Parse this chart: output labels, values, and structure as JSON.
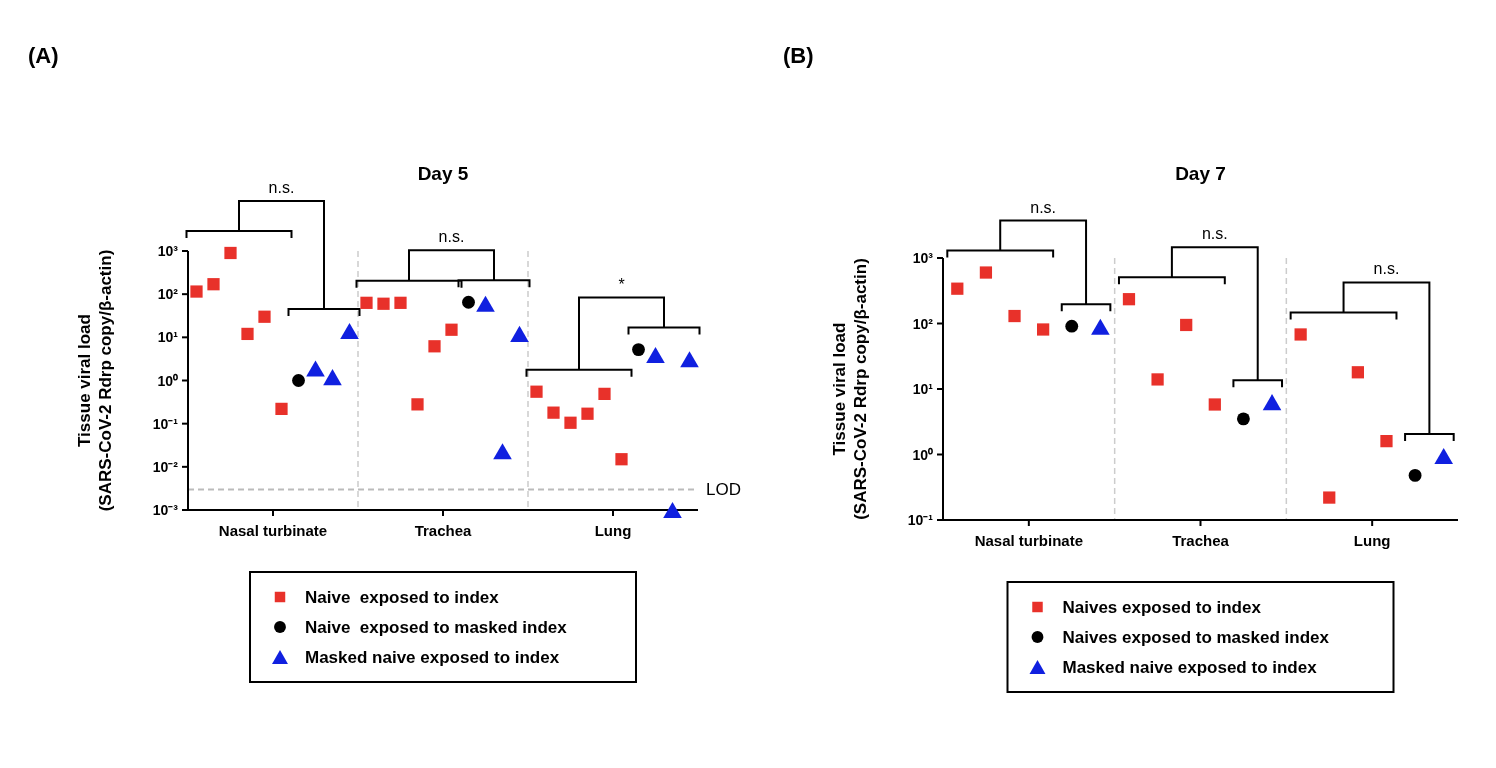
{
  "chart_data": [
    {
      "type": "scatter",
      "title": "Day 5",
      "ylabel": "Tissue viral load\n(SARS-CoV-2 Rdrp copy/β-actin)",
      "log": "y",
      "legend": "bottom",
      "categories": [
        "Nasal turbinate",
        "Trachea",
        "Lung"
      ],
      "ylim": [
        0.001,
        1000
      ],
      "yticks": [
        {
          "value": 0.001,
          "label": "10⁻³"
        },
        {
          "value": 0.01,
          "label": "10⁻²"
        },
        {
          "value": 0.1,
          "label": "10⁻¹"
        },
        {
          "value": 1,
          "label": "10⁰"
        },
        {
          "value": 10,
          "label": "10¹"
        },
        {
          "value": 100,
          "label": "10²"
        },
        {
          "value": 1000,
          "label": "10³"
        }
      ],
      "ref_lines": [
        {
          "axis": "y",
          "value": 0.003,
          "label": "LOD",
          "color": "#bbbbbb",
          "line_style": "dashed"
        }
      ],
      "annotations": [
        "(A)",
        "n.s.",
        "n.s.",
        "*"
      ],
      "series": [
        {
          "name": "Naive  exposed to index",
          "color": "#e8312a",
          "marker": "square",
          "x": [
            "Nasal turbinate",
            "Nasal turbinate",
            "Nasal turbinate",
            "Nasal turbinate",
            "Nasal turbinate",
            "Nasal turbinate",
            "Trachea",
            "Trachea",
            "Trachea",
            "Trachea",
            "Trachea",
            "Trachea",
            "Lung",
            "Lung",
            "Lung",
            "Lung",
            "Lung",
            "Lung"
          ],
          "values": [
            115,
            170,
            900,
            12,
            30,
            0.22,
            63,
            60,
            63,
            0.28,
            6.2,
            15,
            0.55,
            0.18,
            0.105,
            0.17,
            0.49,
            0.015
          ]
        },
        {
          "name": "Naive  exposed to masked index",
          "color": "#000000",
          "marker": "circle",
          "x": [
            "Nasal turbinate",
            "Trachea",
            "Lung"
          ],
          "values": [
            1,
            65,
            5.2
          ]
        },
        {
          "name": "Masked naive exposed to index",
          "color": "#1020e0",
          "marker": "triangle",
          "x": [
            "Nasal turbinate",
            "Nasal turbinate",
            "Nasal turbinate",
            "Trachea",
            "Trachea",
            "Trachea",
            "Lung",
            "Lung",
            "Lung"
          ],
          "values": [
            1.9,
            1.2,
            14,
            60,
            0.023,
            12,
            3.9,
            0.001,
            3.1
          ]
        }
      ]
    },
    {
      "type": "scatter",
      "title": "Day 7",
      "ylabel": "Tissue viral load\n(SARS-CoV-2 Rdrp copy/β-actin)",
      "log": "y",
      "legend": "bottom",
      "categories": [
        "Nasal turbinate",
        "Trachea",
        "Lung"
      ],
      "ylim": [
        0.1,
        1000
      ],
      "yticks": [
        {
          "value": 0.1,
          "label": "10⁻¹"
        },
        {
          "value": 1,
          "label": "10⁰"
        },
        {
          "value": 10,
          "label": "10¹"
        },
        {
          "value": 100,
          "label": "10²"
        },
        {
          "value": 1000,
          "label": "10³"
        }
      ],
      "annotations": [
        "(B)",
        "n.s.",
        "n.s.",
        "n.s."
      ],
      "series": [
        {
          "name": "Naives exposed to index",
          "color": "#e8312a",
          "marker": "square",
          "x": [
            "Nasal turbinate",
            "Nasal turbinate",
            "Nasal turbinate",
            "Nasal turbinate",
            "Trachea",
            "Trachea",
            "Trachea",
            "Trachea",
            "Lung",
            "Lung",
            "Lung",
            "Lung"
          ],
          "values": [
            340,
            600,
            130,
            81,
            235,
            14,
            95,
            5.8,
            68,
            0.22,
            18,
            1.6
          ]
        },
        {
          "name": "Naives exposed to masked index",
          "color": "#000000",
          "marker": "circle",
          "x": [
            "Nasal turbinate",
            "Trachea",
            "Lung"
          ],
          "values": [
            91,
            3.5,
            0.48
          ]
        },
        {
          "name": "Masked naive exposed to index",
          "color": "#1020e0",
          "marker": "triangle",
          "x": [
            "Nasal turbinate",
            "Trachea",
            "Lung"
          ],
          "values": [
            89,
            6.3,
            0.95
          ]
        }
      ]
    }
  ]
}
